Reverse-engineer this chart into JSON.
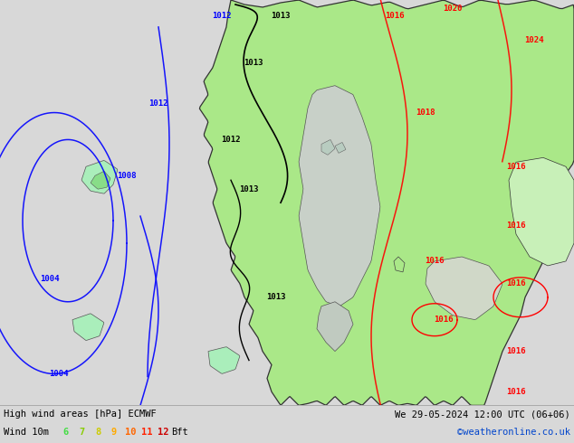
{
  "title_left": "High wind areas [hPa] ECMWF",
  "title_right": "We 29-05-2024 12:00 UTC (06+06)",
  "subtitle_left": "Wind 10m",
  "subtitle_right": "©weatheronline.co.uk",
  "bft_colors": [
    "#44dd44",
    "#88cc00",
    "#cccc00",
    "#ffaa00",
    "#ff6600",
    "#ff2200",
    "#cc0000"
  ],
  "bft_nums": [
    "6",
    "7",
    "8",
    "9",
    "10",
    "11",
    "12"
  ],
  "bg_color": "#d8d8d8",
  "land_green": "#aae888",
  "land_light": "#c8f0c0",
  "sea_gray": "#c0c8c0",
  "fig_width": 6.34,
  "fig_height": 4.9,
  "dpi": 100,
  "title_color": "#000000",
  "credit_color": "#0044cc",
  "bar_color": "#f0f0f0"
}
